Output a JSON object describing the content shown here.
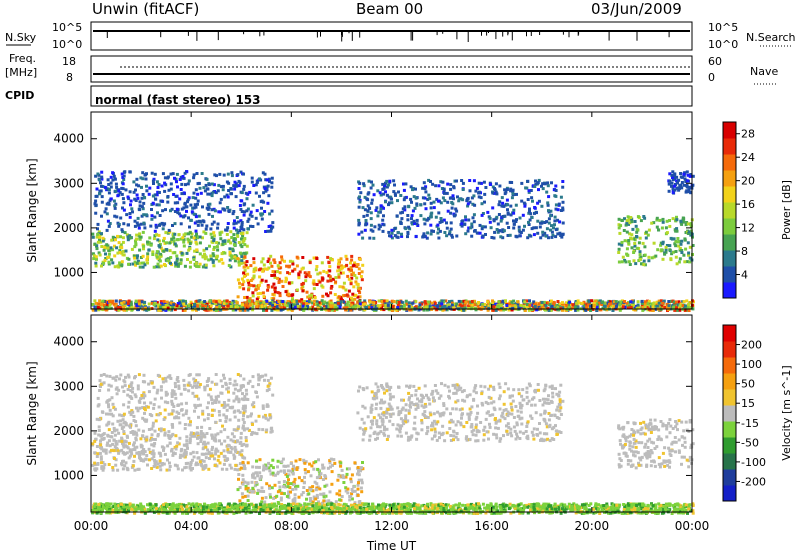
{
  "header": {
    "station": "Unwin (fitACF)",
    "beam": "Beam 00",
    "date": "03/Jun/2009"
  },
  "panels": {
    "nsky": {
      "label": "N.Sky",
      "tick_top": "10^5",
      "tick_bottom": "10^0"
    },
    "nsearch": {
      "label": "N.Search",
      "tick_top": "10^5",
      "tick_bottom": "10^0"
    },
    "freq": {
      "label_line1": "Freq.",
      "label_line2": "[MHz]",
      "tick_top": "18",
      "tick_bottom": "8"
    },
    "nave": {
      "label": "Nave",
      "tick_top": "60",
      "tick_bottom": "0"
    },
    "cpid": {
      "label": "CPID",
      "mode_text": "normal (fast stereo) 153"
    }
  },
  "chart_data": [
    {
      "type": "heatmap",
      "parameter": "Power",
      "ylabel": "Slant Range [km]",
      "xlabel": "Time UT",
      "x_ticks": [
        "00:00",
        "04:00",
        "08:00",
        "12:00",
        "16:00",
        "20:00",
        "00:00"
      ],
      "y_ticks": [
        "1000",
        "2000",
        "3000",
        "4000"
      ],
      "xlim_hours": [
        0,
        24
      ],
      "ylim_km": [
        180,
        4600
      ],
      "colorbar": {
        "label": "Power [dB]",
        "ticks": [
          "4",
          "8",
          "12",
          "16",
          "20",
          "24",
          "28"
        ],
        "range": [
          0,
          30
        ],
        "colors": [
          "#1a1aff",
          "#1f4fa8",
          "#2b7a8c",
          "#47a352",
          "#7ccc3d",
          "#b8d92a",
          "#f2d21a",
          "#f5a010",
          "#f56a0a",
          "#e82a08",
          "#d80000"
        ]
      },
      "regions": [
        {
          "name": "morning band",
          "t": [
            0.0,
            6.2
          ],
          "r": [
            1150,
            1950
          ],
          "level": [
            6,
            18
          ]
        },
        {
          "name": "morning high echoes",
          "t": [
            0.1,
            7.2
          ],
          "r": [
            1950,
            3300
          ],
          "level": [
            2,
            6
          ]
        },
        {
          "name": "daytime near-range",
          "t": [
            5.8,
            10.8
          ],
          "r": [
            300,
            1400
          ],
          "level": [
            14,
            30
          ]
        },
        {
          "name": "midday high echoes",
          "t": [
            10.6,
            18.8
          ],
          "r": [
            1800,
            3100
          ],
          "level": [
            2,
            7
          ]
        },
        {
          "name": "evening band",
          "t": [
            21.0,
            24.0
          ],
          "r": [
            1200,
            2300
          ],
          "level": [
            6,
            16
          ]
        },
        {
          "name": "evening high echoes",
          "t": [
            23.0,
            24.0
          ],
          "r": [
            2800,
            3300
          ],
          "level": [
            2,
            5
          ]
        },
        {
          "name": "ground scatter floor",
          "t": [
            0.0,
            24.0
          ],
          "r": [
            180,
            400
          ],
          "level": [
            2,
            28
          ]
        }
      ]
    },
    {
      "type": "heatmap",
      "parameter": "Velocity",
      "ylabel": "Slant Range [km]",
      "xlabel": "Time UT",
      "x_ticks": [
        "00:00",
        "04:00",
        "08:00",
        "12:00",
        "16:00",
        "20:00",
        "00:00"
      ],
      "y_ticks": [
        "1000",
        "2000",
        "3000",
        "4000"
      ],
      "xlim_hours": [
        0,
        24
      ],
      "ylim_km": [
        180,
        4600
      ],
      "ground_scatter_color": "#bcbcbc",
      "colorbar": {
        "label": "Velocity [m s^-1]",
        "ticks": [
          "200",
          "100",
          "50",
          "15",
          "-15",
          "-50",
          "-100",
          "-200"
        ],
        "range": [
          -250,
          250
        ],
        "colors": [
          "#1420c8",
          "#1f3d9c",
          "#27734a",
          "#2f9c2f",
          "#7cd23c",
          "#bcbcbc",
          "#f0c430",
          "#f5a010",
          "#f56a0a",
          "#e82a08",
          "#e00000"
        ]
      },
      "regions": [
        {
          "name": "morning band",
          "t": [
            0.0,
            6.2
          ],
          "r": [
            1150,
            1950
          ],
          "value": "ground scatter"
        },
        {
          "name": "morning high echoes",
          "t": [
            0.1,
            7.2
          ],
          "r": [
            1950,
            3300
          ],
          "value": "mixed ground scatter and -50"
        },
        {
          "name": "daytime near-range",
          "t": [
            5.8,
            10.8
          ],
          "r": [
            300,
            1400
          ],
          "value": "ground scatter, -50 and 15"
        },
        {
          "name": "midday high echoes",
          "t": [
            10.6,
            18.8
          ],
          "r": [
            1800,
            3100
          ],
          "value": "ground scatter"
        },
        {
          "name": "evening band",
          "t": [
            21.0,
            24.0
          ],
          "r": [
            1200,
            2300
          ],
          "value": "ground scatter"
        },
        {
          "name": "ground scatter floor",
          "t": [
            0.0,
            24.0
          ],
          "r": [
            180,
            400
          ],
          "value": "15 to 50"
        }
      ]
    }
  ]
}
